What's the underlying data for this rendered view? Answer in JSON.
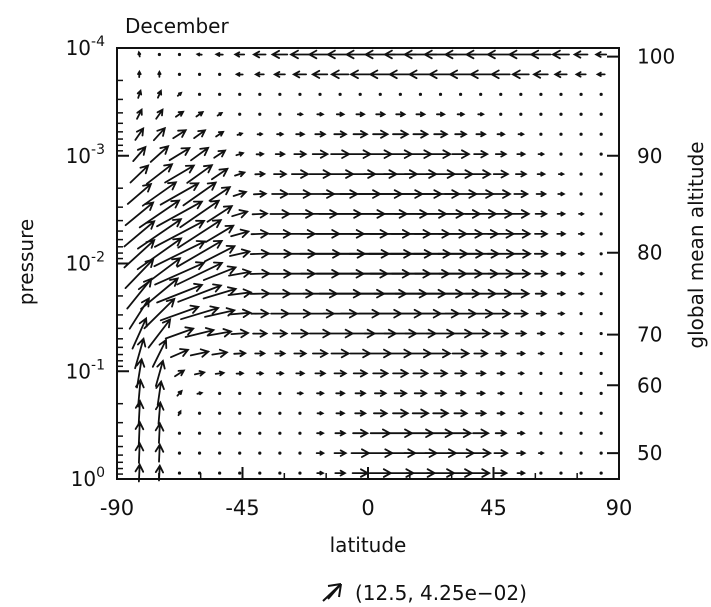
{
  "chart_data": {
    "type": "vector-field",
    "title": "December",
    "xlabel": "latitude",
    "ylabel_left": "pressure",
    "ylabel_right": "global mean altitude",
    "x_ticks": [
      "-90",
      "-45",
      "0",
      "45",
      "90"
    ],
    "x_tick_values": [
      -90,
      -45,
      0,
      45,
      90
    ],
    "xlim": [
      -90,
      90
    ],
    "y_left_scale": "log",
    "y_left_ticks": [
      {
        "base": "10",
        "exp": "-4",
        "value": 0.0001
      },
      {
        "base": "10",
        "exp": "-3",
        "value": 0.001
      },
      {
        "base": "10",
        "exp": "-2",
        "value": 0.01
      },
      {
        "base": "10",
        "exp": "-1",
        "value": 0.1
      },
      {
        "base": "10",
        "exp": "0",
        "value": 1
      }
    ],
    "ylim_pressure": [
      1,
      0.0001
    ],
    "y_right_ticks": [
      "100",
      "90",
      "80",
      "70",
      "60",
      "50"
    ],
    "y_right_tick_log_pressure": [
      -3.92,
      -3.0,
      -2.1,
      -1.34,
      -0.87,
      -0.24
    ],
    "grid": false,
    "reference_vector": {
      "label": "(12.5, 4.25e−02)",
      "u": 12.5,
      "w": 0.0425
    },
    "vector_grid": {
      "lat_start": -82,
      "lat_step": 7.2,
      "lat_count": 24,
      "logp_top": -3.94,
      "logp_step": 0.185,
      "logp_count": 22
    },
    "jets": [
      {
        "lat": -72,
        "log_pressure": -2.25,
        "u": 12,
        "v": 0,
        "lat_width": 18,
        "logp_width": 0.8
      },
      {
        "lat": 10,
        "log_pressure": -2.1,
        "u": 20,
        "v": 0,
        "lat_width": 40,
        "logp_width": 0.9
      },
      {
        "lat": -60,
        "log_pressure": -1.55,
        "u": 6,
        "v": 0,
        "lat_width": 20,
        "logp_width": 0.5
      },
      {
        "lat": -79,
        "log_pressure": -1.4,
        "u": 0,
        "v": 11,
        "lat_width": 8,
        "logp_width": 1.8
      },
      {
        "lat": -62,
        "log_pressure": -2.3,
        "u": 4,
        "v": 9,
        "lat_width": 12,
        "logp_width": 0.8
      },
      {
        "lat": 20,
        "log_pressure": -0.2,
        "u": 10,
        "v": 0,
        "lat_width": 28,
        "logp_width": 0.4
      },
      {
        "lat": 20,
        "log_pressure": -3.9,
        "u": -11,
        "v": 0,
        "lat_width": 60,
        "logp_width": 0.25
      }
    ]
  }
}
